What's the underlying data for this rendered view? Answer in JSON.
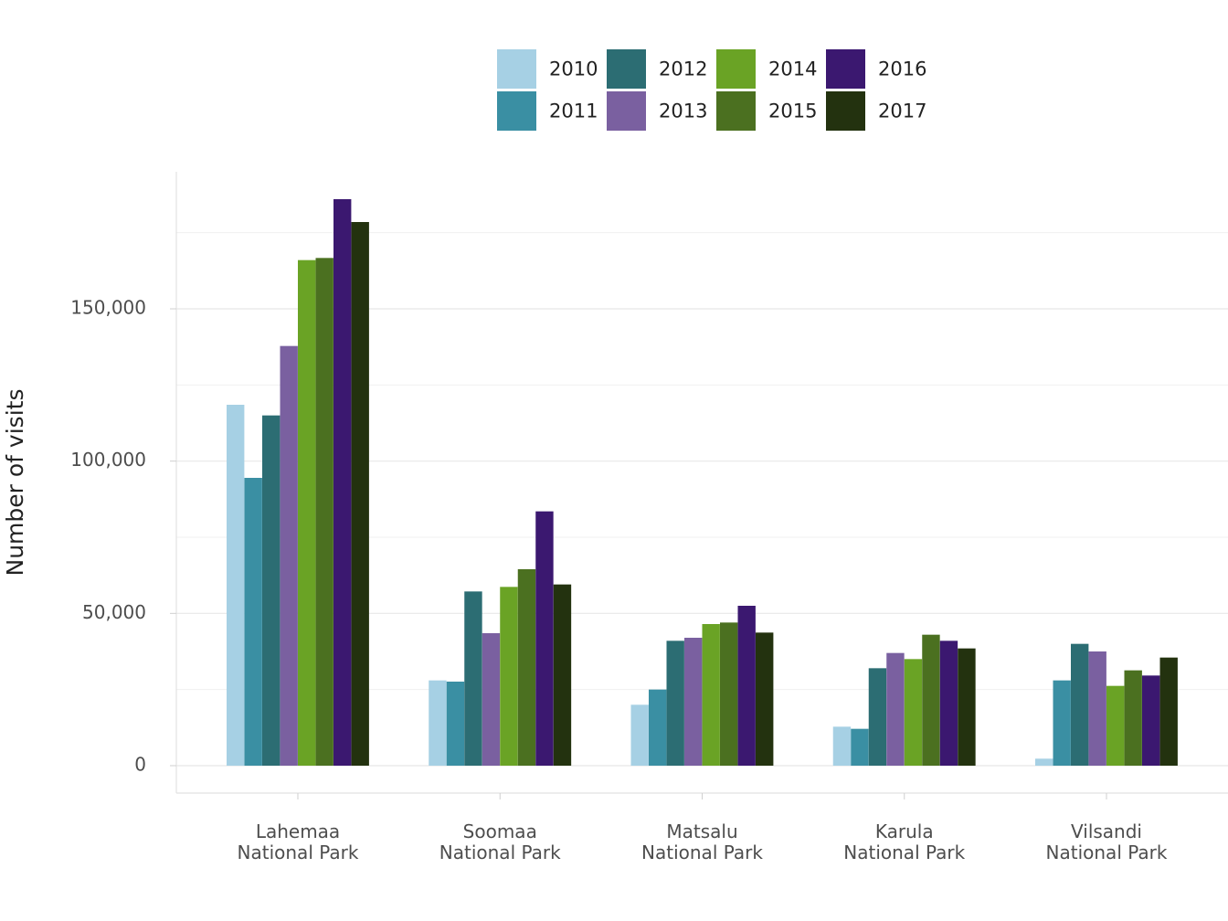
{
  "chart_data": {
    "type": "bar",
    "title": "",
    "xlabel": "",
    "ylabel": "Number of visits",
    "ylim": [
      -9000,
      195000
    ],
    "y_ticks": [
      0,
      50000,
      100000,
      150000
    ],
    "y_tick_labels": [
      "0",
      "50,000",
      "100,000",
      "150,000"
    ],
    "grid": true,
    "legend_position": "top",
    "categories": [
      [
        "Lahemaa",
        "National Park"
      ],
      [
        "Soomaa",
        "National Park"
      ],
      [
        "Matsalu",
        "National Park"
      ],
      [
        "Karula",
        "National Park"
      ],
      [
        "Vilsandi",
        "National Park"
      ]
    ],
    "series": [
      {
        "name": "2010",
        "color": "#a6d0e4",
        "values": [
          118500,
          28000,
          20000,
          12800,
          2300
        ]
      },
      {
        "name": "2011",
        "color": "#3a8fa3",
        "values": [
          94500,
          27600,
          25000,
          12100,
          28000
        ]
      },
      {
        "name": "2012",
        "color": "#2c6d73",
        "values": [
          115000,
          57200,
          41000,
          32000,
          40000
        ]
      },
      {
        "name": "2013",
        "color": "#7a60a0",
        "values": [
          137800,
          43500,
          42000,
          37000,
          37500
        ]
      },
      {
        "name": "2014",
        "color": "#6aa325",
        "values": [
          166000,
          58700,
          46500,
          35000,
          26200
        ]
      },
      {
        "name": "2015",
        "color": "#4b7020",
        "values": [
          166700,
          64500,
          47000,
          43000,
          31300
        ]
      },
      {
        "name": "2016",
        "color": "#3b1870",
        "values": [
          186000,
          83500,
          52500,
          41000,
          29600
        ]
      },
      {
        "name": "2017",
        "color": "#23320f",
        "values": [
          178500,
          59500,
          43700,
          38500,
          35500
        ]
      }
    ]
  }
}
